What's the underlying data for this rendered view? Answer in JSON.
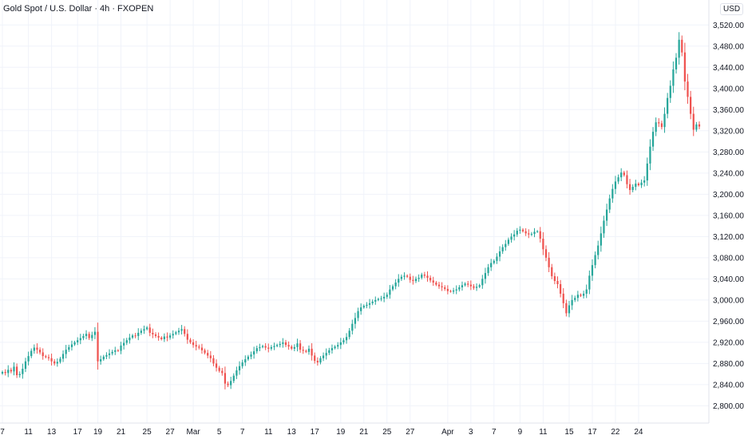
{
  "header": {
    "title": "Gold Spot / U.S. Dollar · 4h · FXOPEN",
    "currency": "USD"
  },
  "colors": {
    "up": "#26a69a",
    "down": "#ef5350",
    "grid": "#f0f3fa",
    "axis_text": "#131722"
  },
  "chart_data": {
    "type": "candlestick",
    "title": "Gold Spot / U.S. Dollar · 4h · FXOPEN",
    "ylabel": "USD",
    "ylim": [
      2775,
      3540
    ],
    "y_ticks": [
      2800,
      2840,
      2880,
      2920,
      2960,
      3000,
      3040,
      3080,
      3120,
      3160,
      3200,
      3240,
      3280,
      3320,
      3360,
      3400,
      3440,
      3480,
      3520
    ],
    "x_ticks": [
      {
        "label": "7",
        "i": 0
      },
      {
        "label": "11",
        "i": 9
      },
      {
        "label": "13",
        "i": 17
      },
      {
        "label": "17",
        "i": 26
      },
      {
        "label": "19",
        "i": 33
      },
      {
        "label": "21",
        "i": 41
      },
      {
        "label": "25",
        "i": 50
      },
      {
        "label": "27",
        "i": 58
      },
      {
        "label": "Mar",
        "i": 66
      },
      {
        "label": "5",
        "i": 75
      },
      {
        "label": "7",
        "i": 83
      },
      {
        "label": "11",
        "i": 92
      },
      {
        "label": "13",
        "i": 100
      },
      {
        "label": "17",
        "i": 108
      },
      {
        "label": "19",
        "i": 117
      },
      {
        "label": "21",
        "i": 125
      },
      {
        "label": "25",
        "i": 133
      },
      {
        "label": "27",
        "i": 141
      },
      {
        "label": "Apr",
        "i": 154
      },
      {
        "label": "3",
        "i": 162
      },
      {
        "label": "7",
        "i": 170
      },
      {
        "label": "9",
        "i": 179
      },
      {
        "label": "11",
        "i": 187
      },
      {
        "label": "15",
        "i": 196
      },
      {
        "label": "17",
        "i": 204
      },
      {
        "label": "22",
        "i": 212
      },
      {
        "label": "24",
        "i": 220
      }
    ],
    "closes": [
      2864,
      2862,
      2868,
      2865,
      2874,
      2858,
      2860,
      2870,
      2884,
      2894,
      2904,
      2910,
      2906,
      2901,
      2894,
      2892,
      2890,
      2884,
      2880,
      2883,
      2889,
      2898,
      2906,
      2911,
      2916,
      2920,
      2924,
      2928,
      2932,
      2936,
      2928,
      2934,
      2940,
      2884,
      2888,
      2893,
      2896,
      2899,
      2902,
      2905,
      2904,
      2914,
      2919,
      2924,
      2929,
      2933,
      2932,
      2938,
      2942,
      2945,
      2948,
      2938,
      2935,
      2932,
      2929,
      2926,
      2931,
      2929,
      2933,
      2936,
      2939,
      2942,
      2945,
      2936,
      2925,
      2920,
      2915,
      2912,
      2910,
      2905,
      2900,
      2895,
      2890,
      2880,
      2872,
      2866,
      2862,
      2842,
      2839,
      2847,
      2857,
      2867,
      2875,
      2882,
      2888,
      2893,
      2897,
      2903,
      2909,
      2911,
      2913,
      2910,
      2908,
      2911,
      2913,
      2915,
      2917,
      2920,
      2915,
      2912,
      2908,
      2911,
      2918,
      2906,
      2904,
      2902,
      2908,
      2895,
      2885,
      2882,
      2890,
      2895,
      2900,
      2905,
      2909,
      2912,
      2915,
      2920,
      2924,
      2930,
      2942,
      2955,
      2966,
      2979,
      2986,
      2989,
      2991,
      2994,
      2997,
      3000,
      3002,
      3003,
      3006,
      3010,
      3020,
      3026,
      3033,
      3040,
      3044,
      3046,
      3044,
      3038,
      3036,
      3040,
      3042,
      3048,
      3046,
      3042,
      3037,
      3033,
      3029,
      3026,
      3024,
      3021,
      3017,
      3016,
      3018,
      3020,
      3024,
      3028,
      3031,
      3029,
      3026,
      3023,
      3025,
      3028,
      3040,
      3051,
      3062,
      3070,
      3074,
      3082,
      3092,
      3100,
      3106,
      3114,
      3120,
      3124,
      3131,
      3133,
      3130,
      3126,
      3124,
      3125,
      3129,
      3130,
      3116,
      3096,
      3080,
      3062,
      3045,
      3036,
      3030,
      3012,
      2994,
      2975,
      2990,
      3000,
      3004,
      3010,
      3008,
      3012,
      3020,
      3046,
      3066,
      3085,
      3103,
      3126,
      3150,
      3171,
      3192,
      3210,
      3224,
      3232,
      3241,
      3236,
      3219,
      3208,
      3214,
      3220,
      3217,
      3222,
      3226,
      3258,
      3290,
      3318,
      3336,
      3334,
      3327,
      3352,
      3382,
      3405,
      3436,
      3458,
      3492,
      3468,
      3413,
      3384,
      3352,
      3322,
      3332,
      3328
    ]
  }
}
